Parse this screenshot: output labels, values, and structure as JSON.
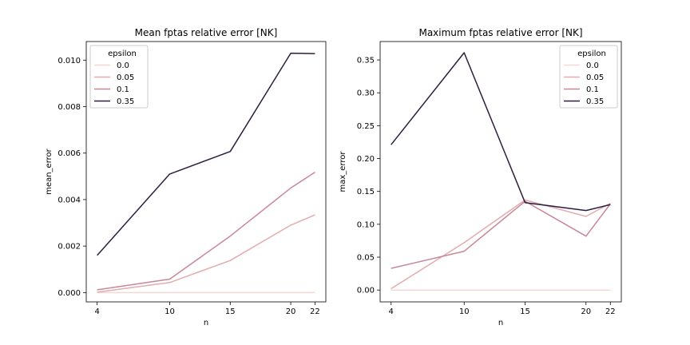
{
  "chart_data": [
    {
      "type": "line",
      "title": "Mean fptas relative error [NK]",
      "xlabel": "n",
      "ylabel": "mean_error",
      "x": [
        4,
        10,
        15,
        20,
        22
      ],
      "xticks": [
        "4",
        "10",
        "15",
        "20",
        "22"
      ],
      "ylim": [
        -0.0004,
        0.0108
      ],
      "yticks": [
        "0.000",
        "0.002",
        "0.004",
        "0.006",
        "0.008",
        "0.010"
      ],
      "yticks_values": [
        0,
        0.002,
        0.004,
        0.006,
        0.008,
        0.01
      ],
      "legend": {
        "title": "epsilon",
        "placement": "top-left"
      },
      "grid": false,
      "series": [
        {
          "name": "0.0",
          "color": "#f3d8d4",
          "values": [
            0,
            0,
            0,
            0,
            0
          ]
        },
        {
          "name": "0.05",
          "color": "#e2acae",
          "values": [
            2e-05,
            0.00043,
            0.00138,
            0.0029,
            0.00334
          ]
        },
        {
          "name": "0.1",
          "color": "#c88797",
          "values": [
            0.00012,
            0.00058,
            0.00243,
            0.0045,
            0.00518
          ]
        },
        {
          "name": "0.35",
          "color": "#2d1e3e",
          "values": [
            0.0016,
            0.0051,
            0.00607,
            0.0103,
            0.01028
          ]
        }
      ]
    },
    {
      "type": "line",
      "title": "Maximum fptas relative error [NK]",
      "xlabel": "n",
      "ylabel": "max_error",
      "x": [
        4,
        10,
        15,
        20,
        22
      ],
      "xticks": [
        "4",
        "10",
        "15",
        "20",
        "22"
      ],
      "ylim": [
        -0.018,
        0.378
      ],
      "yticks": [
        "0.00",
        "0.05",
        "0.10",
        "0.15",
        "0.20",
        "0.25",
        "0.30",
        "0.35"
      ],
      "yticks_values": [
        0,
        0.05,
        0.1,
        0.15,
        0.2,
        0.25,
        0.3,
        0.35
      ],
      "legend": {
        "title": "epsilon",
        "placement": "top-right"
      },
      "grid": false,
      "series": [
        {
          "name": "0.0",
          "color": "#f3d8d4",
          "values": [
            0,
            0,
            0,
            0,
            0
          ]
        },
        {
          "name": "0.05",
          "color": "#e2acae",
          "values": [
            0.002,
            0.072,
            0.137,
            0.112,
            0.132
          ]
        },
        {
          "name": "0.1",
          "color": "#c88797",
          "values": [
            0.033,
            0.059,
            0.135,
            0.082,
            0.131
          ]
        },
        {
          "name": "0.35",
          "color": "#2d1e3e",
          "values": [
            0.221,
            0.361,
            0.133,
            0.121,
            0.13
          ]
        }
      ]
    }
  ]
}
